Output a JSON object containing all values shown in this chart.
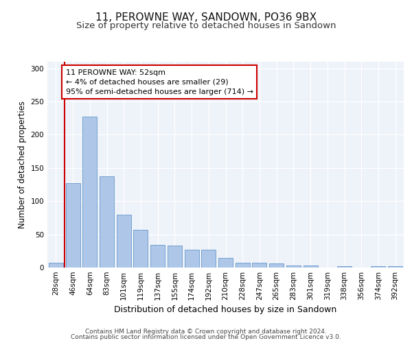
{
  "title1": "11, PEROWNE WAY, SANDOWN, PO36 9BX",
  "title2": "Size of property relative to detached houses in Sandown",
  "xlabel": "Distribution of detached houses by size in Sandown",
  "ylabel": "Number of detached properties",
  "categories": [
    "28sqm",
    "46sqm",
    "64sqm",
    "83sqm",
    "101sqm",
    "119sqm",
    "137sqm",
    "155sqm",
    "174sqm",
    "192sqm",
    "210sqm",
    "228sqm",
    "247sqm",
    "265sqm",
    "283sqm",
    "301sqm",
    "319sqm",
    "338sqm",
    "356sqm",
    "374sqm",
    "392sqm"
  ],
  "values": [
    7,
    127,
    227,
    137,
    80,
    57,
    34,
    33,
    27,
    27,
    14,
    7,
    7,
    6,
    3,
    3,
    0,
    2,
    0,
    2,
    2
  ],
  "bar_color": "#aec6e8",
  "bar_edge_color": "#6699cc",
  "vline_color": "#cc0000",
  "vline_x": 0.5,
  "annotation_text": "11 PEROWNE WAY: 52sqm\n← 4% of detached houses are smaller (29)\n95% of semi-detached houses are larger (714) →",
  "annotation_box_facecolor": "#ffffff",
  "annotation_box_edgecolor": "#cc0000",
  "ylim": [
    0,
    310
  ],
  "yticks": [
    0,
    50,
    100,
    150,
    200,
    250,
    300
  ],
  "bg_color": "#eef2f9",
  "footer_line1": "Contains HM Land Registry data © Crown copyright and database right 2024.",
  "footer_line2": "Contains public sector information licensed under the Open Government Licence v3.0.",
  "title1_fontsize": 11,
  "title2_fontsize": 9.5,
  "xlabel_fontsize": 9,
  "ylabel_fontsize": 8.5,
  "tick_fontsize": 7.5,
  "footer_fontsize": 6.5,
  "ann_fontsize": 8
}
